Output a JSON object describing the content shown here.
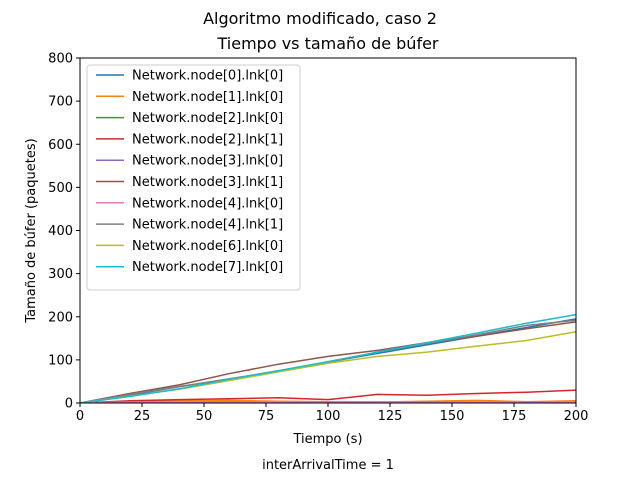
{
  "chart_data": {
    "type": "line",
    "suptitle": "Algoritmo modificado, caso 2",
    "title": "Tiempo vs tamaño de búfer",
    "xlabel": "Tiempo (s)",
    "ylabel": "Tamaño de búfer (paquetes)",
    "footer": "interArrivalTime = 1",
    "xlim": [
      0,
      200
    ],
    "ylim": [
      0,
      800
    ],
    "xticks": [
      0,
      25,
      50,
      75,
      100,
      125,
      150,
      175,
      200
    ],
    "yticks": [
      0,
      100,
      200,
      300,
      400,
      500,
      600,
      700,
      800
    ],
    "legend_position": "top-left",
    "series": [
      {
        "name": "Network.node[0].lnk[0]",
        "color": "#1f77b4",
        "x": [
          0,
          20,
          40,
          60,
          80,
          100,
          120,
          140,
          160,
          180,
          200
        ],
        "y": [
          0,
          18,
          38,
          55,
          75,
          95,
          115,
          135,
          155,
          175,
          195
        ]
      },
      {
        "name": "Network.node[1].lnk[0]",
        "color": "#ff7f0e",
        "x": [
          0,
          20,
          40,
          60,
          80,
          100,
          120,
          140,
          160,
          180,
          200
        ],
        "y": [
          0,
          3,
          5,
          6,
          4,
          3,
          2,
          4,
          6,
          3,
          5
        ]
      },
      {
        "name": "Network.node[2].lnk[0]",
        "color": "#2ca02c",
        "x": [
          0,
          20,
          40,
          60,
          80,
          100,
          120,
          140,
          160,
          180,
          200
        ],
        "y": [
          0,
          2,
          3,
          2,
          3,
          2,
          2,
          3,
          2,
          2,
          3
        ]
      },
      {
        "name": "Network.node[2].lnk[1]",
        "color": "#d62728",
        "x": [
          0,
          20,
          40,
          60,
          80,
          100,
          120,
          140,
          160,
          180,
          200
        ],
        "y": [
          0,
          5,
          8,
          10,
          12,
          8,
          20,
          18,
          22,
          25,
          30
        ]
      },
      {
        "name": "Network.node[3].lnk[0]",
        "color": "#9467bd",
        "x": [
          0,
          20,
          40,
          60,
          80,
          100,
          120,
          140,
          160,
          180,
          200
        ],
        "y": [
          0,
          2,
          2,
          3,
          2,
          2,
          3,
          2,
          2,
          3,
          2
        ]
      },
      {
        "name": "Network.node[3].lnk[1]",
        "color": "#8c564b",
        "x": [
          0,
          20,
          40,
          60,
          80,
          100,
          120,
          140,
          160,
          180,
          200
        ],
        "y": [
          0,
          22,
          42,
          68,
          90,
          108,
          122,
          140,
          155,
          172,
          188
        ]
      },
      {
        "name": "Network.node[4].lnk[0]",
        "color": "#e377c2",
        "x": [
          0,
          20,
          40,
          60,
          80,
          100,
          120,
          140,
          160,
          180,
          200
        ],
        "y": [
          0,
          2,
          3,
          2,
          3,
          2,
          3,
          2,
          3,
          2,
          3
        ]
      },
      {
        "name": "Network.node[4].lnk[1]",
        "color": "#7f7f7f",
        "x": [
          0,
          20,
          40,
          60,
          80,
          100,
          120,
          140,
          160,
          180,
          200
        ],
        "y": [
          0,
          20,
          38,
          56,
          74,
          94,
          118,
          138,
          158,
          180,
          192
        ]
      },
      {
        "name": "Network.node[6].lnk[0]",
        "color": "#bcbd22",
        "x": [
          0,
          20,
          40,
          60,
          80,
          100,
          120,
          140,
          160,
          180,
          200
        ],
        "y": [
          0,
          16,
          32,
          52,
          72,
          92,
          108,
          118,
          132,
          145,
          165
        ]
      },
      {
        "name": "Network.node[7].lnk[0]",
        "color": "#17becf",
        "x": [
          0,
          20,
          40,
          60,
          80,
          100,
          120,
          140,
          160,
          180,
          200
        ],
        "y": [
          0,
          15,
          33,
          55,
          75,
          96,
          118,
          140,
          162,
          185,
          205
        ]
      }
    ]
  }
}
